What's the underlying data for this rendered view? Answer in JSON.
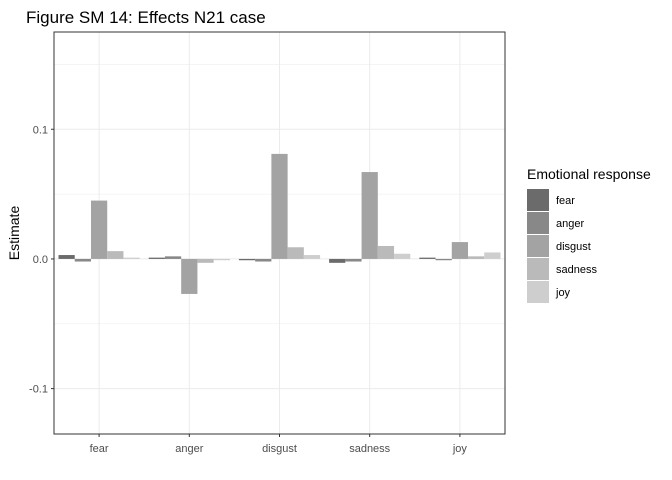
{
  "chart_data": {
    "type": "bar",
    "title": "Figure SM 14: Effects N21 case",
    "xlabel": "",
    "ylabel": "Estimate",
    "categories": [
      "fear",
      "anger",
      "disgust",
      "sadness",
      "joy"
    ],
    "yticks": [
      -0.1,
      0.0,
      0.1
    ],
    "ytick_labels": [
      "-0.1",
      "0.0",
      "0.1"
    ],
    "ylim": [
      -0.135,
      0.175
    ],
    "grid": true,
    "legend": {
      "title": "Emotional response",
      "placement": "right"
    },
    "series": [
      {
        "name": "fear",
        "color": "#6b6b6b",
        "values": [
          0.003,
          0.001,
          -0.001,
          -0.003,
          0.001
        ]
      },
      {
        "name": "anger",
        "color": "#888888",
        "values": [
          -0.002,
          0.002,
          -0.002,
          -0.002,
          -0.001
        ]
      },
      {
        "name": "disgust",
        "color": "#a3a3a3",
        "values": [
          0.045,
          -0.027,
          0.081,
          0.067,
          0.013
        ]
      },
      {
        "name": "sadness",
        "color": "#bababa",
        "values": [
          0.006,
          -0.003,
          0.009,
          0.01,
          0.002
        ]
      },
      {
        "name": "joy",
        "color": "#cecece",
        "values": [
          0.001,
          -0.001,
          0.003,
          0.004,
          0.005
        ]
      }
    ]
  }
}
